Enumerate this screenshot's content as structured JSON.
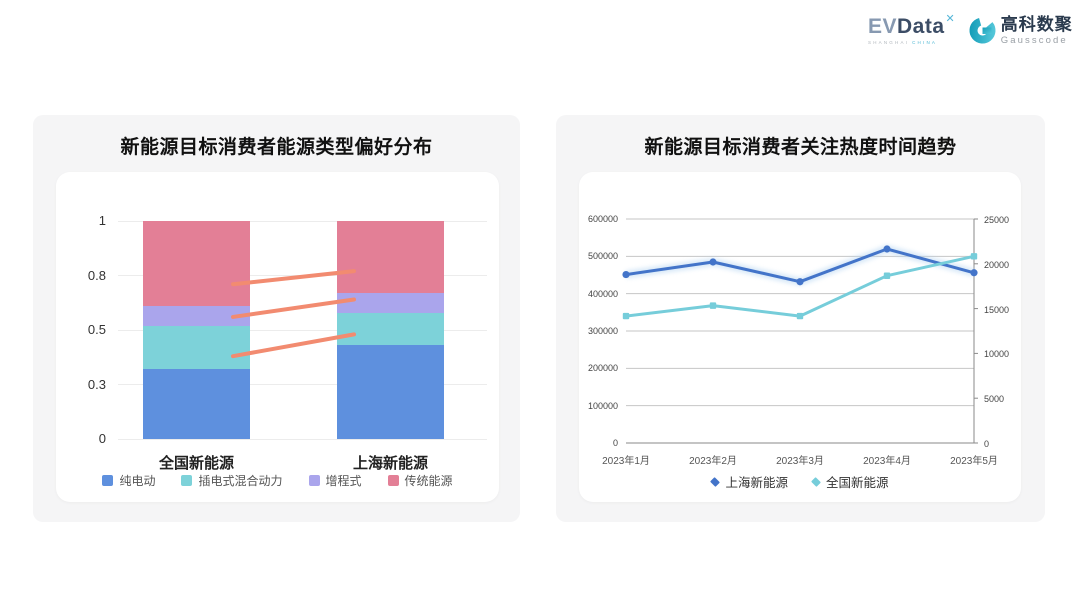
{
  "brand": {
    "evdata": {
      "ev": "EV",
      "data": "Data",
      "x": "✕",
      "sub1": "SHANGHAI",
      "sub2": "CHINA"
    },
    "gausscode": {
      "cn": "高科数聚",
      "en": "Gausscode"
    }
  },
  "colors": {
    "card_bg": "#f5f5f6",
    "panel_bg": "#ffffff",
    "bar_grid": "#ececec",
    "line_grid": "#c6c6c6",
    "line_axis": "#8a8a8a",
    "connector": "#f28b70",
    "shanghai_line": "#4374c9",
    "shanghai_glow": "#b9d7f2",
    "national_line": "#76cdda"
  },
  "chart_data": [
    {
      "type": "bar",
      "stacked": true,
      "title": "新能源目标消费者能源类型偏好分布",
      "categories": [
        "全国新能源",
        "上海新能源"
      ],
      "series": [
        {
          "name": "纯电动",
          "color": "#5e90de",
          "values": [
            0.32,
            0.43
          ]
        },
        {
          "name": "插电式混合动力",
          "color": "#7dd2d9",
          "values": [
            0.2,
            0.15
          ]
        },
        {
          "name": "增程式",
          "color": "#aaa5ec",
          "values": [
            0.09,
            0.09
          ]
        },
        {
          "name": "传统能源",
          "color": "#e37f96",
          "values": [
            0.39,
            0.33
          ]
        }
      ],
      "ylim": [
        0,
        1
      ],
      "yticks": [
        {
          "label": "0",
          "pos": 0
        },
        {
          "label": "0.3",
          "pos": 0.25
        },
        {
          "label": "0.5",
          "pos": 0.5
        },
        {
          "label": "0.8",
          "pos": 0.75
        },
        {
          "label": "1",
          "pos": 1
        }
      ],
      "grid": true,
      "legend_position": "bottom",
      "connector_lines": {
        "color": "#f28b70",
        "segments": [
          {
            "from_y": 0.38,
            "to_y": 0.48
          },
          {
            "from_y": 0.56,
            "to_y": 0.64
          },
          {
            "from_y": 0.71,
            "to_y": 0.77
          }
        ]
      }
    },
    {
      "type": "line",
      "title": "新能源目标消费者关注热度时间趋势",
      "x": [
        "2023年1月",
        "2023年2月",
        "2023年3月",
        "2023年4月",
        "2023年5月"
      ],
      "series": [
        {
          "name": "上海新能源",
          "axis": "right",
          "color": "#4374c9",
          "marker": "circle",
          "values": [
            18800,
            20200,
            18000,
            21650,
            19000
          ]
        },
        {
          "name": "全国新能源",
          "axis": "left",
          "color": "#76cdda",
          "marker": "square",
          "values": [
            340000,
            368000,
            340000,
            448000,
            500000
          ]
        }
      ],
      "left_axis": {
        "min": 0,
        "max": 600000,
        "ticks": [
          "600000",
          "500000",
          "400000",
          "300000",
          "200000",
          "100000",
          "0"
        ]
      },
      "right_axis": {
        "min": 0,
        "max": 25000,
        "ticks": [
          "25000",
          "20000",
          "15000",
          "10000",
          "5000",
          "0"
        ]
      },
      "grid": true,
      "legend_position": "bottom"
    }
  ]
}
